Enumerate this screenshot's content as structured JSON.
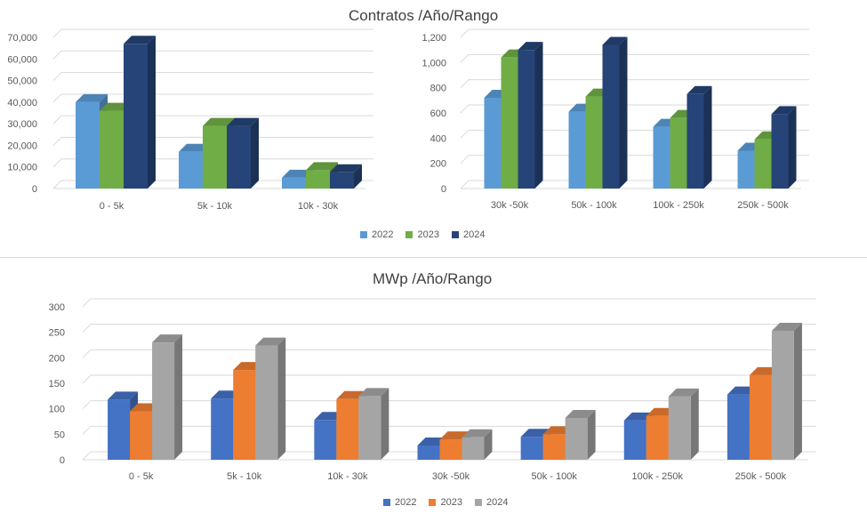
{
  "top": {
    "title": "Contratos /Año/Rango",
    "legend": [
      "2022",
      "2023",
      "2024"
    ]
  },
  "bottom": {
    "title": "MWp /Año/Rango",
    "legend": [
      "2022",
      "2023",
      "2024"
    ]
  },
  "chart_data": [
    {
      "type": "bar",
      "title": "Contratos /Año/Rango",
      "categories": [
        "0 - 5k",
        "5k - 10k",
        "10k - 30k"
      ],
      "ylim": [
        0,
        70000
      ],
      "yticks": [
        "0",
        "10,000",
        "20,000",
        "30,000",
        "40,000",
        "50,000",
        "60,000",
        "70,000"
      ],
      "grid": true,
      "legend_position": "bottom",
      "series": [
        {
          "name": "2022",
          "color": "#5b9bd5",
          "values": [
            40000,
            17000,
            5000
          ]
        },
        {
          "name": "2023",
          "color": "#70ad47",
          "values": [
            36000,
            29000,
            8500
          ]
        },
        {
          "name": "2024",
          "color": "#264478",
          "values": [
            67000,
            29000,
            7500
          ]
        }
      ]
    },
    {
      "type": "bar",
      "title": "Contratos /Año/Rango",
      "categories": [
        "30k -50k",
        "50k - 100k",
        "100k - 250k",
        "250k - 500k"
      ],
      "ylim": [
        0,
        1200
      ],
      "yticks": [
        "0",
        "200",
        "400",
        "600",
        "800",
        "1,000",
        "1,200"
      ],
      "grid": true,
      "legend_position": "bottom",
      "series": [
        {
          "name": "2022",
          "color": "#5b9bd5",
          "values": [
            720,
            610,
            490,
            300
          ]
        },
        {
          "name": "2023",
          "color": "#70ad47",
          "values": [
            1040,
            730,
            560,
            390
          ]
        },
        {
          "name": "2024",
          "color": "#264478",
          "values": [
            1100,
            1140,
            750,
            590
          ]
        }
      ]
    },
    {
      "type": "bar",
      "title": "MWp /Año/Rango",
      "categories": [
        "0 - 5k",
        "5k - 10k",
        "10k - 30k",
        "30k -50k",
        "50k - 100k",
        "100k - 250k",
        "250k - 500k"
      ],
      "ylim": [
        0,
        300
      ],
      "yticks": [
        "0",
        "50",
        "100",
        "150",
        "200",
        "250",
        "300"
      ],
      "grid": true,
      "legend_position": "bottom",
      "series": [
        {
          "name": "2022",
          "color": "#4472c4",
          "values": [
            118,
            120,
            78,
            28,
            45,
            77,
            128
          ]
        },
        {
          "name": "2023",
          "color": "#ed7d31",
          "values": [
            95,
            176,
            119,
            40,
            50,
            86,
            166
          ]
        },
        {
          "name": "2024",
          "color": "#a5a5a5",
          "values": [
            230,
            224,
            125,
            44,
            82,
            124,
            253
          ]
        }
      ]
    }
  ]
}
